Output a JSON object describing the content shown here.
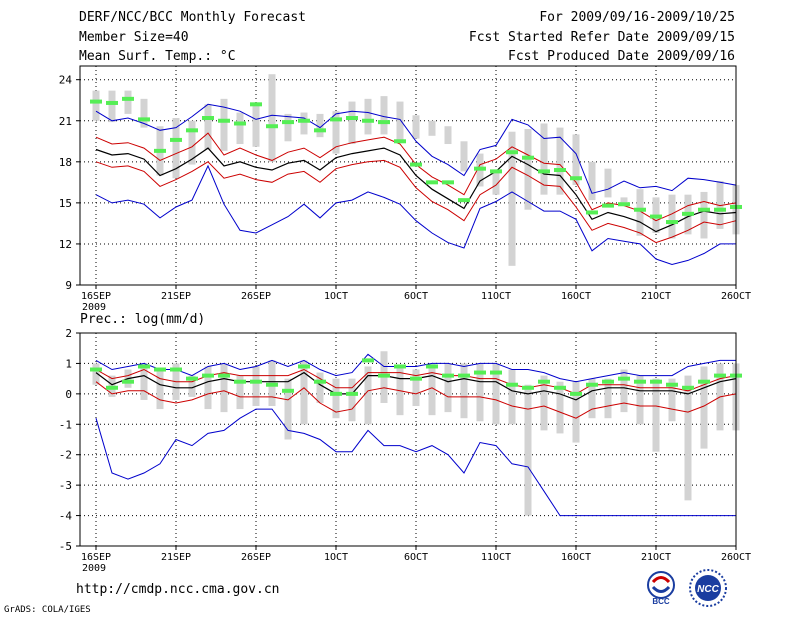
{
  "header": {
    "title": "DERF/NCC/BCC Monthly Forecast",
    "member_size": "Member Size=40",
    "variable": "Mean Surf. Temp.: °C",
    "period": "For 2009/09/16-2009/10/25",
    "refer_date": "Fcst Started Refer Date 2009/09/15",
    "produced_date": "Fcst Produced Date 2009/09/16"
  },
  "footer": {
    "url": "http://cmdp.ncc.cma.gov.cn",
    "credit": "GrADS: COLA/IGES",
    "logo_bcc": "BCC",
    "logo_ncc": "NCC"
  },
  "colors": {
    "box": "#d3d3d3",
    "median": "#55ee55",
    "mean": "#000000",
    "spread": "#cc0000",
    "envelope": "#0000cc",
    "grid": "#000000"
  },
  "chart_data": [
    {
      "type": "line",
      "title": "Mean Surf. Temp.: °C",
      "x_label_year": "2009",
      "x_tick_labels": [
        "16SEP",
        "21SEP",
        "26SEP",
        "1OCT",
        "6OCT",
        "11OCT",
        "16OCT",
        "21OCT",
        "26OCT"
      ],
      "x_tick_days": [
        0,
        5,
        10,
        15,
        20,
        25,
        30,
        35,
        40
      ],
      "xlim": [
        -1,
        40
      ],
      "ylim": [
        9,
        25
      ],
      "y_ticks": [
        9,
        12,
        15,
        18,
        21,
        24
      ],
      "grid": true,
      "box_low": [
        21.0,
        20.9,
        21.5,
        20.5,
        17.0,
        16.8,
        17.8,
        18.9,
        18.8,
        19.3,
        19.1,
        18.0,
        19.5,
        20.0,
        19.8,
        18.6,
        19.3,
        20.0,
        20.0,
        19.5,
        19.7,
        19.9,
        19.3,
        17.3,
        16.2,
        15.6,
        10.4,
        14.5,
        15.6,
        15.6,
        16.3,
        15.2,
        15.4,
        14.8,
        12.6,
        12.8,
        12.4,
        12.7,
        12.4,
        13.1,
        12.7
      ],
      "box_high": [
        23.2,
        23.2,
        23.2,
        22.6,
        20.6,
        21.2,
        21.0,
        22.2,
        22.6,
        21.6,
        22.2,
        24.4,
        21.5,
        21.6,
        21.5,
        21.7,
        22.4,
        22.6,
        22.8,
        22.4,
        21.4,
        21.0,
        20.6,
        19.5,
        18.6,
        17.4,
        20.2,
        20.4,
        20.8,
        20.5,
        20.0,
        18.0,
        17.5,
        15.4,
        16.0,
        15.4,
        15.6,
        15.6,
        15.8,
        16.6,
        16.3
      ],
      "median": [
        22.4,
        22.3,
        22.6,
        21.1,
        18.8,
        19.6,
        20.3,
        21.2,
        21.0,
        20.8,
        22.2,
        20.6,
        20.9,
        21.0,
        20.3,
        21.1,
        21.2,
        21.0,
        20.9,
        19.5,
        17.8,
        16.5,
        16.5,
        15.2,
        17.5,
        17.3,
        18.7,
        18.3,
        17.3,
        17.4,
        16.8,
        14.3,
        14.8,
        14.9,
        14.5,
        14.0,
        13.6,
        14.2,
        14.5,
        14.5,
        14.7
      ],
      "ens_mean": [
        18.9,
        18.5,
        18.6,
        18.2,
        17.0,
        17.5,
        18.2,
        19.0,
        17.7,
        18.0,
        17.6,
        17.4,
        17.9,
        18.1,
        17.4,
        18.3,
        18.6,
        18.8,
        19.0,
        18.5,
        17.0,
        16.0,
        15.3,
        14.6,
        16.6,
        17.3,
        18.4,
        17.8,
        17.1,
        17.0,
        15.6,
        13.8,
        14.3,
        14.0,
        13.6,
        12.9,
        13.4,
        14.0,
        14.4,
        14.2,
        14.3
      ],
      "spread_upper": [
        19.8,
        19.3,
        19.4,
        19.0,
        18.1,
        18.6,
        19.1,
        20.1,
        18.5,
        19.0,
        18.5,
        18.1,
        18.7,
        19.0,
        18.3,
        19.1,
        19.4,
        19.6,
        19.8,
        19.3,
        17.8,
        16.9,
        16.3,
        15.6,
        17.8,
        18.2,
        19.1,
        18.5,
        17.9,
        17.8,
        16.5,
        14.5,
        15.0,
        14.8,
        14.4,
        13.7,
        14.2,
        14.8,
        15.1,
        14.8,
        15.0
      ],
      "spread_lower": [
        18.0,
        17.6,
        17.7,
        17.3,
        16.2,
        16.7,
        17.3,
        18.0,
        16.8,
        17.1,
        16.7,
        16.5,
        17.1,
        17.3,
        16.5,
        17.5,
        17.8,
        18.0,
        18.1,
        17.6,
        16.1,
        15.1,
        14.5,
        13.7,
        15.6,
        16.3,
        17.6,
        17.0,
        16.3,
        16.2,
        14.7,
        13.0,
        13.5,
        13.2,
        12.8,
        12.1,
        12.5,
        13.0,
        13.6,
        13.4,
        13.7
      ],
      "env_max": [
        21.7,
        21.0,
        21.2,
        20.8,
        20.3,
        20.5,
        21.3,
        22.2,
        22.0,
        21.7,
        21.1,
        21.4,
        21.3,
        21.2,
        20.5,
        21.5,
        21.7,
        21.6,
        21.3,
        21.1,
        19.5,
        18.4,
        17.8,
        17.0,
        18.9,
        19.2,
        21.1,
        20.7,
        19.7,
        19.8,
        18.6,
        15.7,
        16.0,
        16.6,
        16.1,
        16.2,
        15.9,
        16.8,
        16.7,
        16.5,
        16.3
      ],
      "env_min": [
        15.6,
        15.0,
        15.2,
        14.9,
        13.9,
        14.7,
        15.2,
        17.7,
        14.9,
        13.0,
        12.8,
        13.4,
        14.0,
        14.9,
        13.9,
        15.0,
        15.2,
        15.8,
        15.4,
        14.9,
        13.7,
        12.8,
        12.1,
        11.7,
        14.6,
        15.1,
        15.8,
        15.1,
        14.4,
        14.4,
        13.8,
        11.5,
        12.4,
        12.2,
        12.0,
        10.9,
        10.5,
        10.8,
        11.3,
        12.0,
        12.0
      ]
    },
    {
      "type": "line",
      "title": "Prec.: log(mm/d)",
      "x_label_year": "2009",
      "x_tick_labels": [
        "16SEP",
        "21SEP",
        "26SEP",
        "1OCT",
        "6OCT",
        "11OCT",
        "16OCT",
        "21OCT",
        "26OCT"
      ],
      "x_tick_days": [
        0,
        5,
        10,
        15,
        20,
        25,
        30,
        35,
        40
      ],
      "xlim": [
        -1,
        40
      ],
      "ylim": [
        -5,
        2
      ],
      "y_ticks": [
        -5,
        -4,
        -3,
        -2,
        -1,
        0,
        1,
        2
      ],
      "grid": true,
      "box_low": [
        0.3,
        -0.1,
        0.2,
        -0.2,
        -0.5,
        -0.2,
        -0.1,
        -0.5,
        -0.6,
        -0.5,
        -0.4,
        -0.4,
        -1.5,
        -1.0,
        -0.3,
        -0.8,
        -0.9,
        -1.0,
        -0.3,
        -0.7,
        -0.4,
        -0.7,
        -0.6,
        -0.8,
        -0.9,
        -1.0,
        -1.0,
        -4.0,
        -1.2,
        -1.3,
        -1.6,
        -0.8,
        -0.8,
        -0.6,
        -1.0,
        -1.9,
        -0.9,
        -3.5,
        -1.8,
        -1.2,
        -1.2
      ],
      "box_high": [
        1.0,
        0.6,
        0.8,
        1.0,
        0.8,
        1.0,
        0.6,
        0.9,
        1.0,
        0.6,
        0.9,
        1.1,
        0.5,
        1.1,
        0.7,
        0.5,
        0.5,
        0.9,
        1.4,
        0.9,
        0.8,
        1.0,
        1.0,
        1.0,
        1.0,
        1.0,
        0.8,
        0.3,
        0.6,
        0.4,
        0.4,
        0.5,
        0.5,
        0.8,
        0.6,
        0.5,
        0.5,
        0.6,
        0.9,
        1.0,
        1.0
      ],
      "median": [
        0.8,
        0.2,
        0.4,
        0.9,
        0.8,
        0.8,
        0.5,
        0.6,
        0.6,
        0.4,
        0.4,
        0.3,
        0.1,
        0.9,
        0.4,
        0.0,
        0.0,
        1.1,
        0.6,
        0.9,
        0.5,
        0.9,
        0.6,
        0.6,
        0.7,
        0.7,
        0.3,
        0.2,
        0.4,
        0.2,
        0.0,
        0.3,
        0.4,
        0.5,
        0.4,
        0.4,
        0.3,
        0.2,
        0.4,
        0.6,
        0.6
      ],
      "ens_mean": [
        0.7,
        0.3,
        0.5,
        0.6,
        0.3,
        0.2,
        0.2,
        0.4,
        0.5,
        0.4,
        0.4,
        0.4,
        0.4,
        0.7,
        0.3,
        0.0,
        0.0,
        0.6,
        0.6,
        0.5,
        0.5,
        0.6,
        0.4,
        0.5,
        0.4,
        0.4,
        0.1,
        0.0,
        0.1,
        0.0,
        -0.2,
        0.1,
        0.2,
        0.2,
        0.1,
        0.1,
        0.1,
        0.0,
        0.2,
        0.4,
        0.5
      ],
      "spread_upper": [
        0.8,
        0.5,
        0.6,
        0.8,
        0.5,
        0.4,
        0.4,
        0.6,
        0.7,
        0.6,
        0.6,
        0.6,
        0.6,
        0.8,
        0.5,
        0.2,
        0.2,
        0.7,
        0.7,
        0.7,
        0.6,
        0.7,
        0.6,
        0.6,
        0.5,
        0.5,
        0.3,
        0.2,
        0.3,
        0.2,
        0.0,
        0.3,
        0.3,
        0.3,
        0.2,
        0.2,
        0.2,
        0.1,
        0.3,
        0.5,
        0.6
      ],
      "spread_lower": [
        0.4,
        0.0,
        0.1,
        0.1,
        -0.2,
        -0.3,
        -0.2,
        0.0,
        0.1,
        -0.1,
        -0.1,
        -0.1,
        -0.2,
        0.2,
        -0.3,
        -0.6,
        -0.5,
        0.1,
        0.2,
        0.1,
        0.0,
        0.2,
        -0.1,
        -0.1,
        -0.1,
        -0.2,
        -0.4,
        -0.5,
        -0.4,
        -0.6,
        -0.8,
        -0.5,
        -0.4,
        -0.3,
        -0.4,
        -0.4,
        -0.5,
        -0.6,
        -0.4,
        -0.1,
        0.0
      ],
      "env_max": [
        1.1,
        0.8,
        0.9,
        1.0,
        0.8,
        0.8,
        0.6,
        0.9,
        1.0,
        0.8,
        0.9,
        1.1,
        0.9,
        1.1,
        0.8,
        0.6,
        0.7,
        1.3,
        0.9,
        0.9,
        0.9,
        1.0,
        1.0,
        0.9,
        1.0,
        1.0,
        0.8,
        0.8,
        0.7,
        0.5,
        0.4,
        0.5,
        0.6,
        0.7,
        0.6,
        0.6,
        0.6,
        0.9,
        1.0,
        1.1,
        1.1
      ],
      "env_min": [
        -0.8,
        -2.6,
        -2.8,
        -2.6,
        -2.3,
        -1.5,
        -1.7,
        -1.3,
        -1.2,
        -0.8,
        -0.5,
        -0.5,
        -1.2,
        -1.3,
        -1.5,
        -1.9,
        -1.9,
        -1.2,
        -1.7,
        -1.7,
        -1.9,
        -1.7,
        -2.0,
        -2.6,
        -1.6,
        -1.7,
        -2.3,
        -2.4,
        -3.2,
        -4.0,
        -4.0,
        -4.0,
        -4.0,
        -4.0,
        -4.0,
        -4.0,
        -4.0,
        -4.0,
        -4.0,
        -4.0,
        -4.0
      ]
    }
  ]
}
